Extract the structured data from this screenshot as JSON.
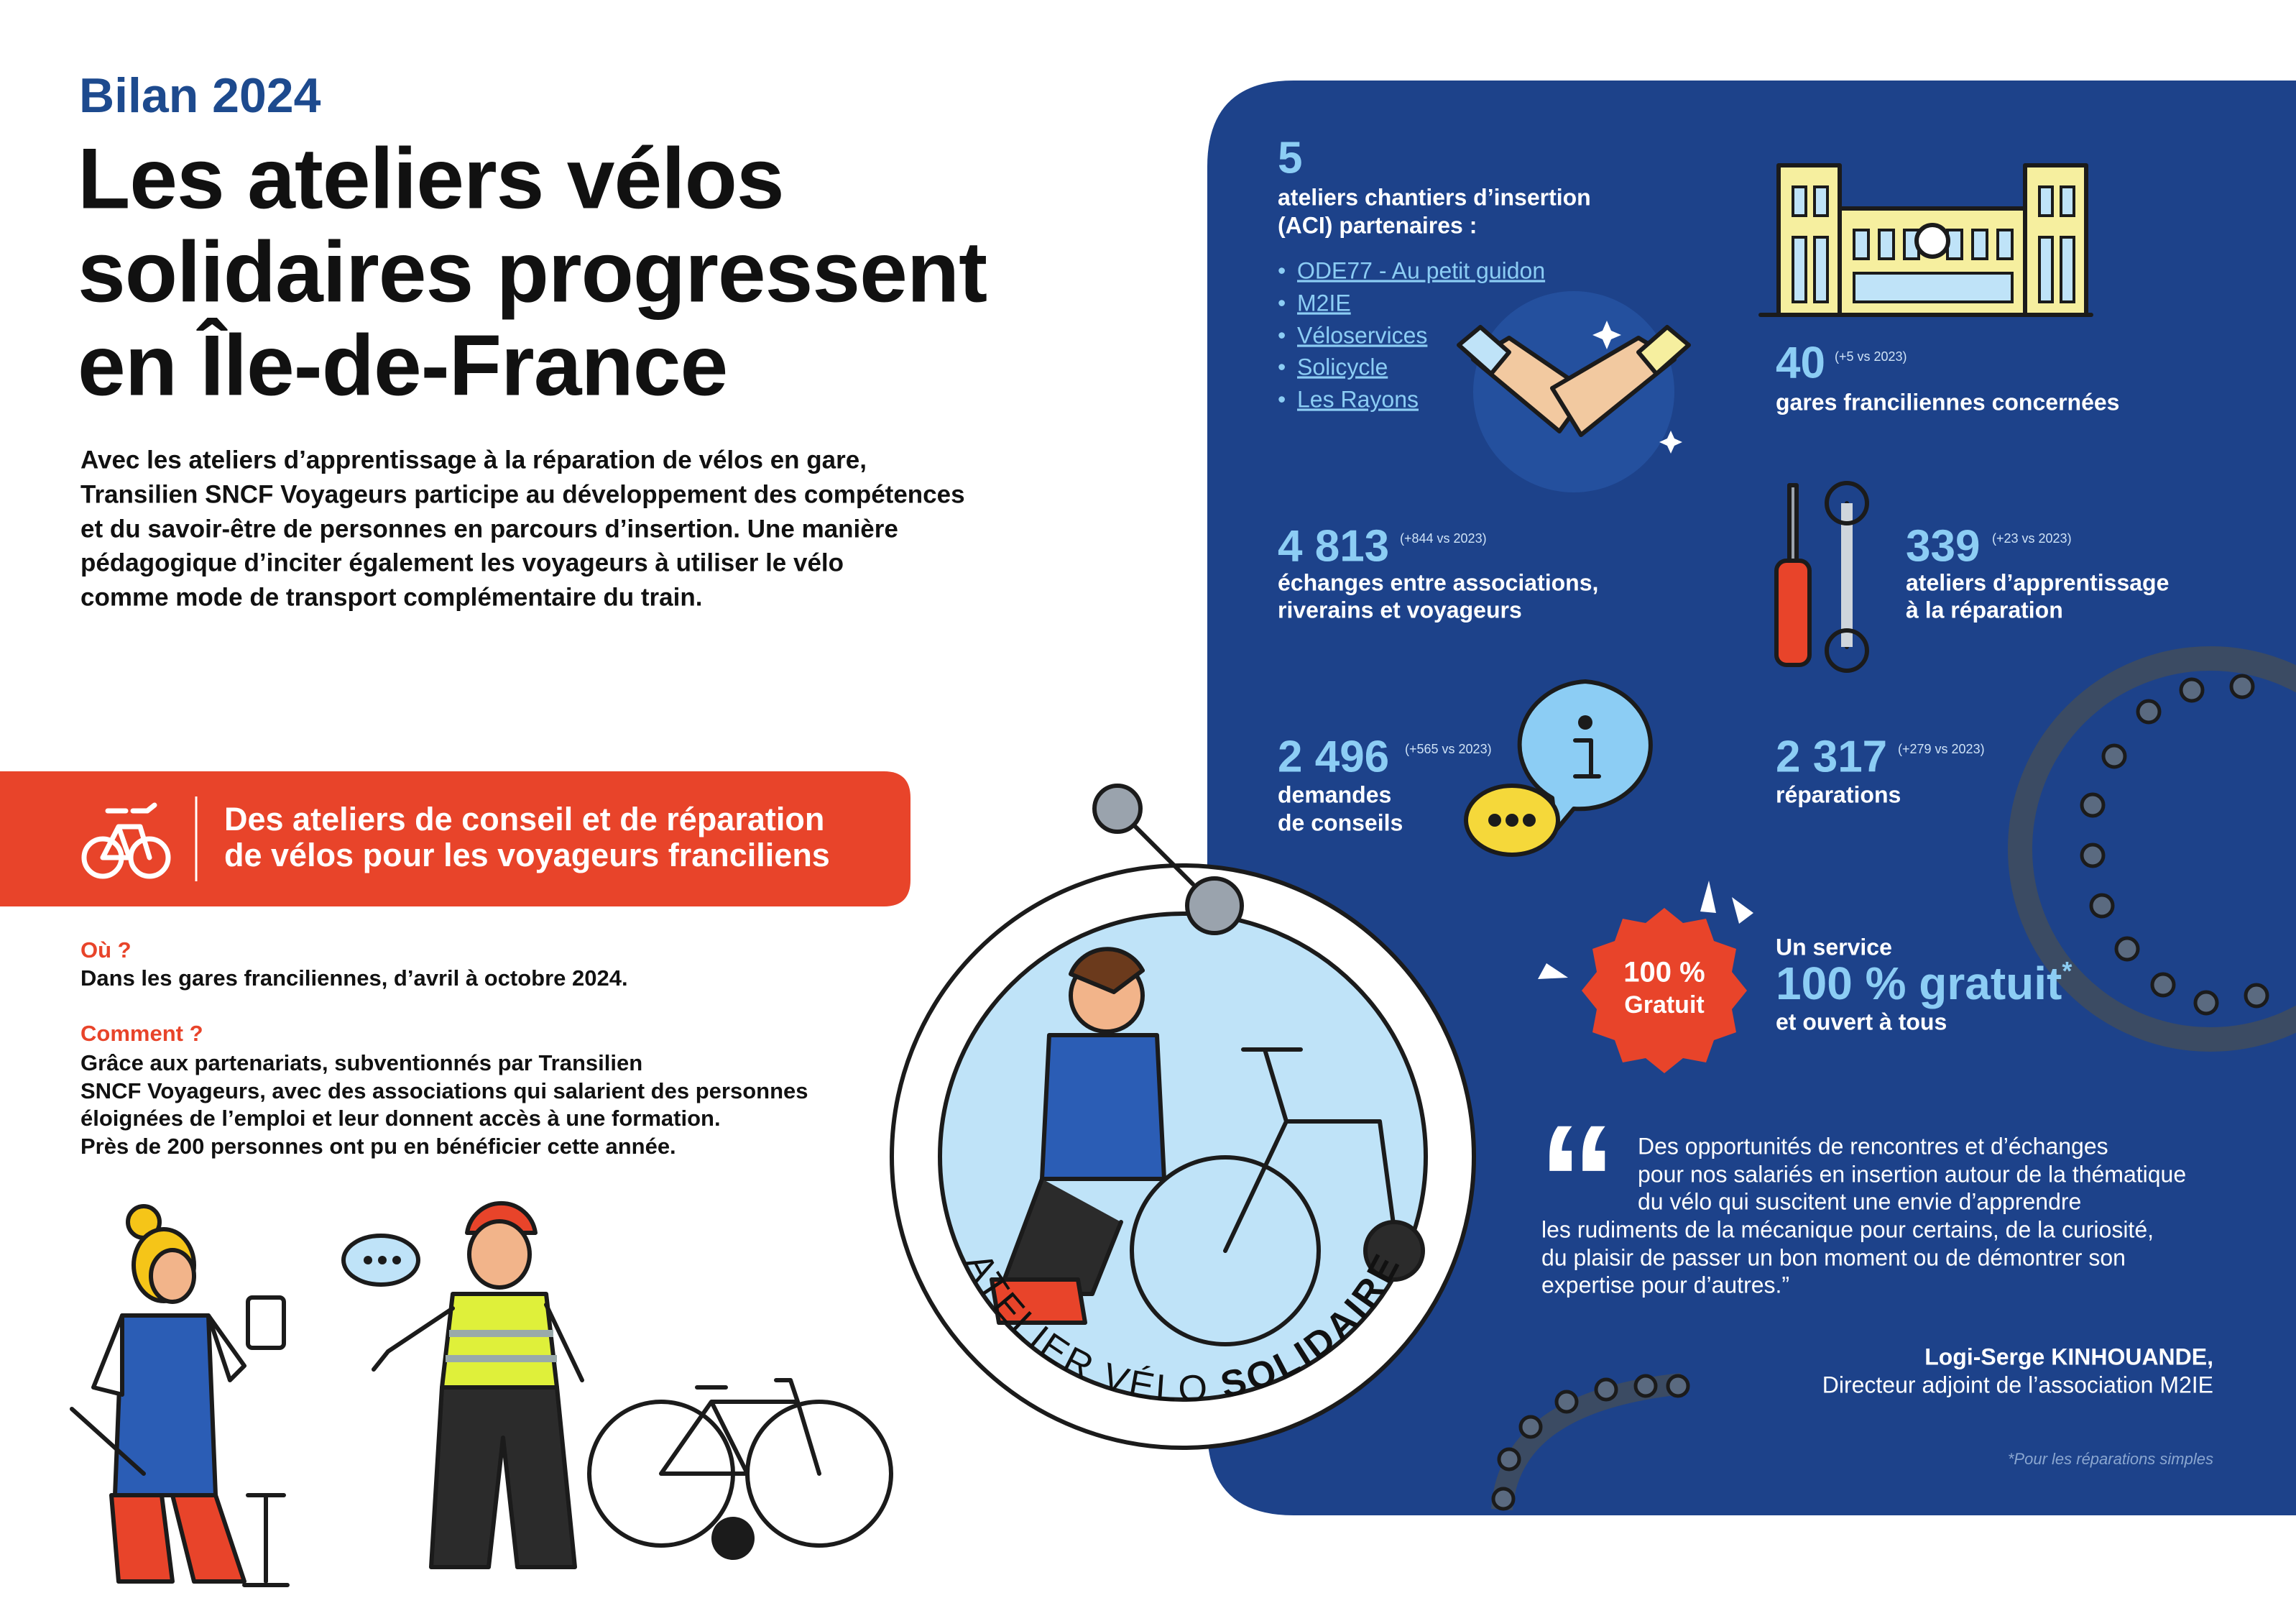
{
  "header": {
    "kicker": "Bilan 2024",
    "title_lines": [
      "Les ateliers vélos",
      "solidaires progressent",
      "en Île-de-France"
    ],
    "intro_lines": [
      "Avec les ateliers d’apprentissage à la réparation de vélos en gare,",
      "Transilien SNCF Voyageurs participe au développement des compétences",
      "et du savoir-être de personnes en parcours d’insertion. Une manière",
      "pédagogique d’inciter également les voyageurs à utiliser le vélo",
      "comme mode de transport complémentaire du train."
    ]
  },
  "banner": {
    "lines": [
      "Des ateliers de conseil et de réparation",
      "de vélos pour les voyageurs franciliens"
    ]
  },
  "details": {
    "where_label": "Où ?",
    "where_text": "Dans les gares franciliennes, d’avril à octobre 2024.",
    "how_label": "Comment ?",
    "how_lines": [
      "Grâce aux partenariats, subventionnés par Transilien",
      "SNCF Voyageurs, avec des associations qui salarient des personnes",
      "éloignées de l’emploi et leur donnent accès à une formation.",
      "Près de 200 personnes ont pu en bénéficier cette année."
    ]
  },
  "stats": {
    "partners": {
      "number": "5",
      "label_lines": [
        "ateliers chantiers d’insertion",
        "(ACI) partenaires :"
      ],
      "list": [
        "ODE77 - Au petit guidon",
        "M2IE",
        "Véloservices",
        "Solicycle",
        "Les Rayons"
      ]
    },
    "stations": {
      "number": "40",
      "delta": "(+5 vs 2023)",
      "label_lines": [
        "gares franciliennes concernées"
      ]
    },
    "exchanges": {
      "number": "4 813",
      "delta": "(+844 vs 2023)",
      "label_lines": [
        "échanges entre associations,",
        "riverains et voyageurs"
      ]
    },
    "workshops": {
      "number": "339",
      "delta": "(+23 vs 2023)",
      "label_lines": [
        "ateliers d’apprentissage",
        "à la réparation"
      ]
    },
    "advice": {
      "number": "2 496",
      "delta": "(+565 vs 2023)",
      "label_lines": [
        "demandes",
        "de conseils"
      ]
    },
    "repairs": {
      "number": "2 317",
      "delta": "(+279 vs 2023)",
      "label_lines": [
        "réparations"
      ]
    }
  },
  "badge": {
    "lines": [
      "100 %",
      "Gratuit"
    ]
  },
  "service": {
    "intro": "Un service",
    "headline": "100 % gratuit",
    "asterisk": "*",
    "outro": "et ouvert à tous"
  },
  "quote": {
    "lines": [
      "Des opportunités de rencontres et d’échanges",
      "pour nos salariés en insertion autour de la thématique",
      "du vélo qui suscitent une envie d’apprendre",
      "les rudiments de la mécanique pour certains, de la curiosité,",
      "du plaisir de passer un bon moment ou de démontrer son",
      "expertise pour d’autres.”"
    ],
    "author": "Logi-Serge KINHOUANDE,",
    "role": "Directeur adjoint de l’association M2IE"
  },
  "footnote": "*Pour les réparations simples",
  "medallion": {
    "text_start": "ATELIER VÉLO ",
    "text_bold": "SOLIDAIRE"
  }
}
